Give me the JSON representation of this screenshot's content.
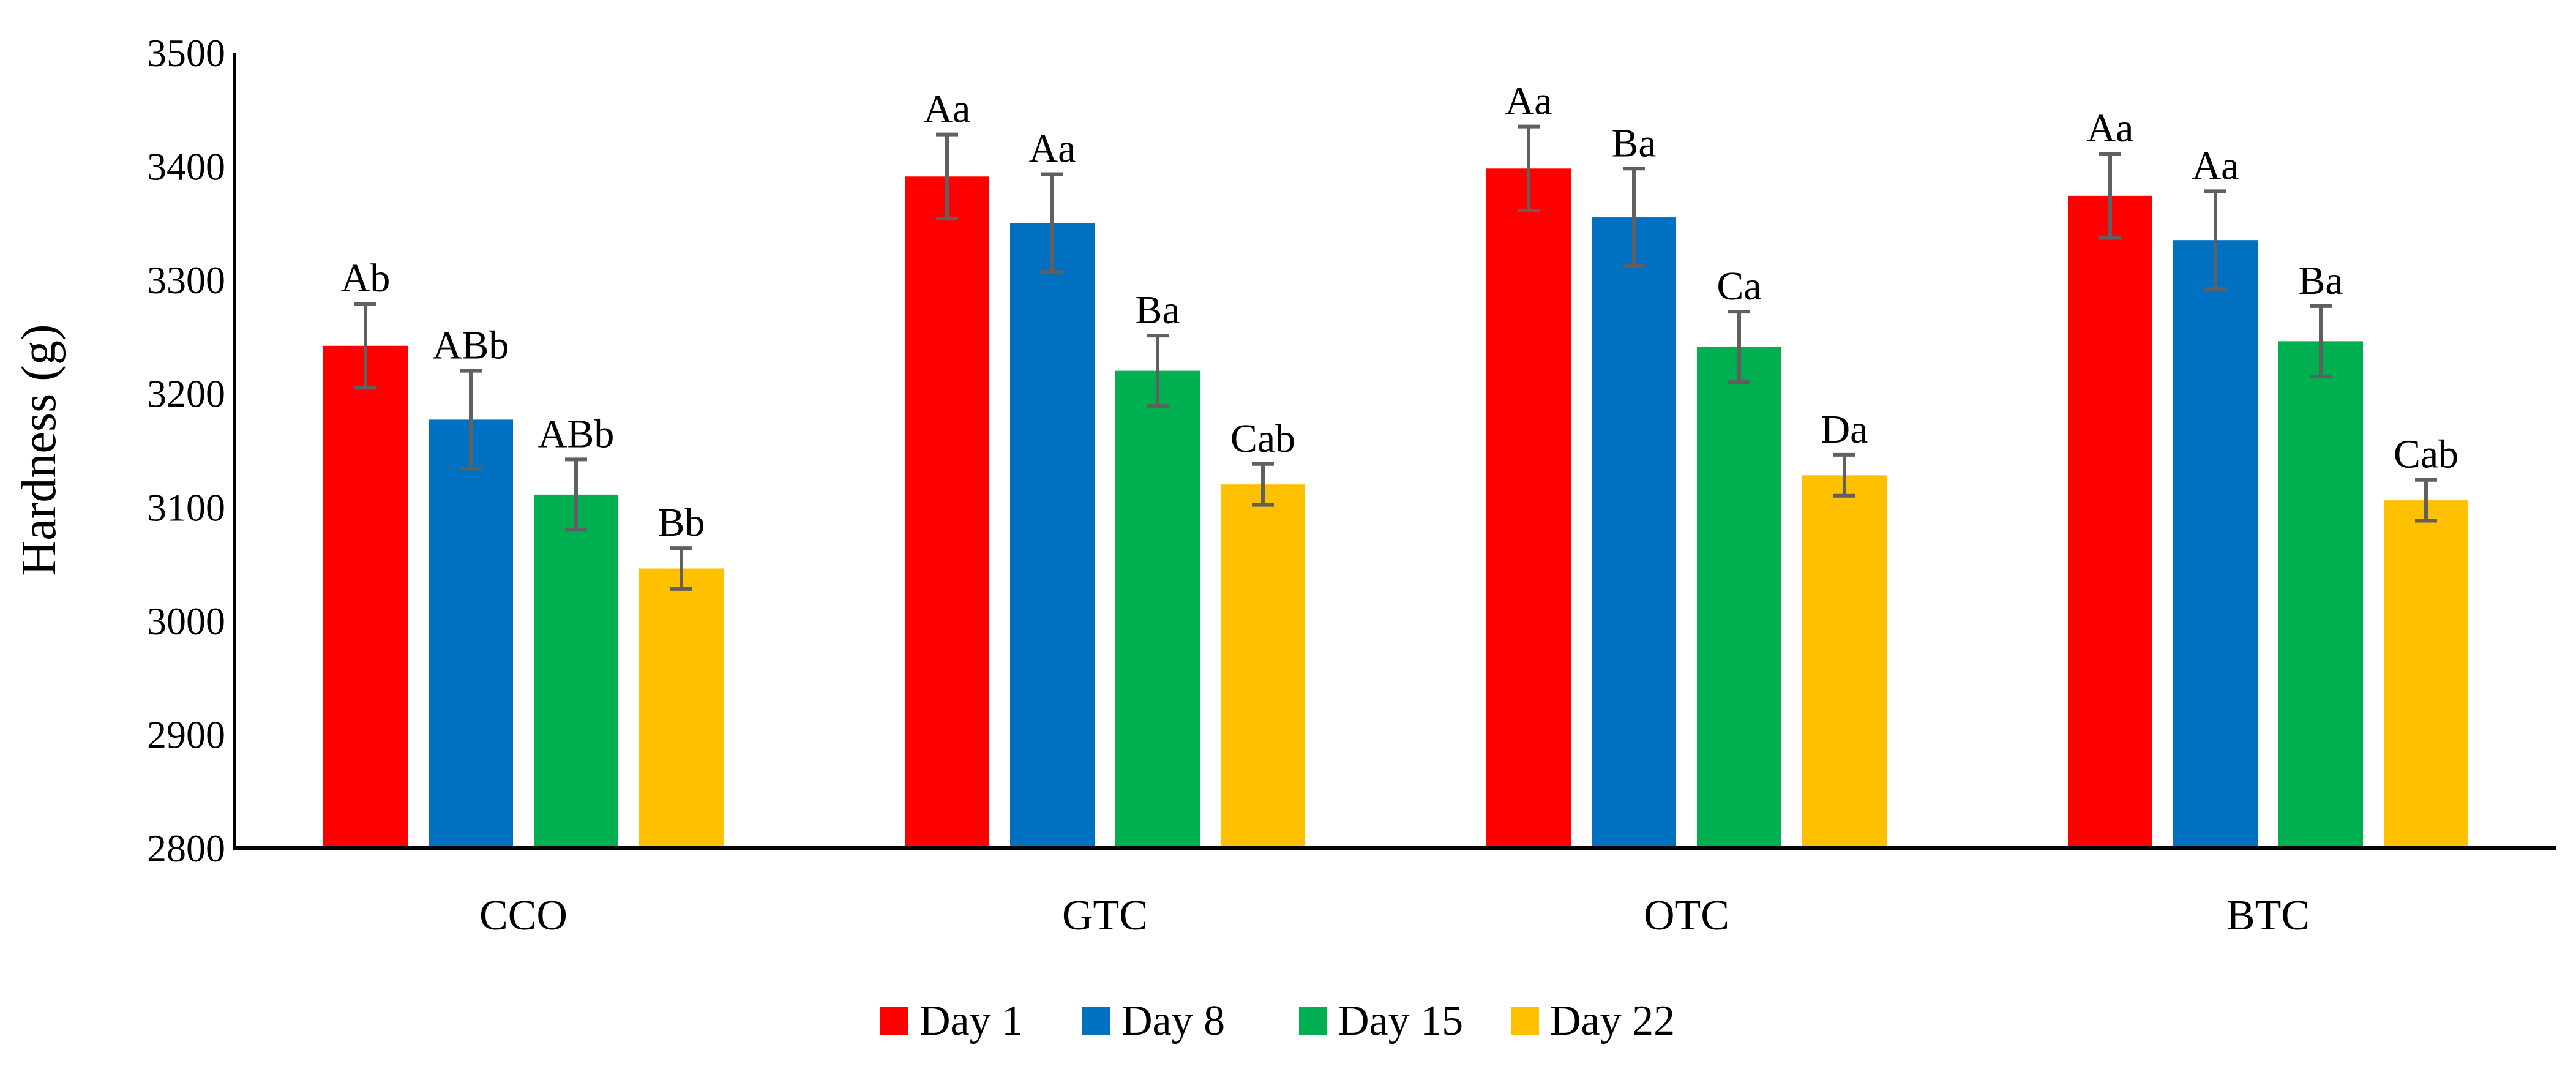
{
  "chart_data": {
    "type": "bar",
    "title": "",
    "xlabel": "",
    "ylabel": "Hardness (g)",
    "ylim": [
      2800,
      3500
    ],
    "yticks": [
      2800,
      2900,
      3000,
      3100,
      3200,
      3300,
      3400,
      3500
    ],
    "categories": [
      "CCO",
      "GTC",
      "OTC",
      "BTC"
    ],
    "legend_position": "bottom-center",
    "series": [
      {
        "name": "Day 1",
        "color": "#ff0000",
        "values": [
          3242,
          3391,
          3398,
          3374
        ],
        "errors": [
          37,
          37,
          37,
          37
        ],
        "labels": [
          "Ab",
          "Aa",
          "Aa",
          "Aa"
        ]
      },
      {
        "name": "Day 8",
        "color": "#0070c0",
        "values": [
          3177,
          3350,
          3355,
          3335
        ],
        "errors": [
          43,
          43,
          43,
          43
        ],
        "labels": [
          "ABb",
          "Aa",
          "Ba",
          "Aa"
        ]
      },
      {
        "name": "Day 15",
        "color": "#00b050",
        "values": [
          3111,
          3220,
          3241,
          3246
        ],
        "errors": [
          31,
          31,
          31,
          31
        ],
        "labels": [
          "ABb",
          "Ba",
          "Ca",
          "Ba"
        ]
      },
      {
        "name": "Day 22",
        "color": "#ffc000",
        "values": [
          3046,
          3120,
          3128,
          3106
        ],
        "errors": [
          18,
          18,
          18,
          18
        ],
        "labels": [
          "Bb",
          "Cab",
          "Da",
          "Cab"
        ]
      }
    ]
  }
}
